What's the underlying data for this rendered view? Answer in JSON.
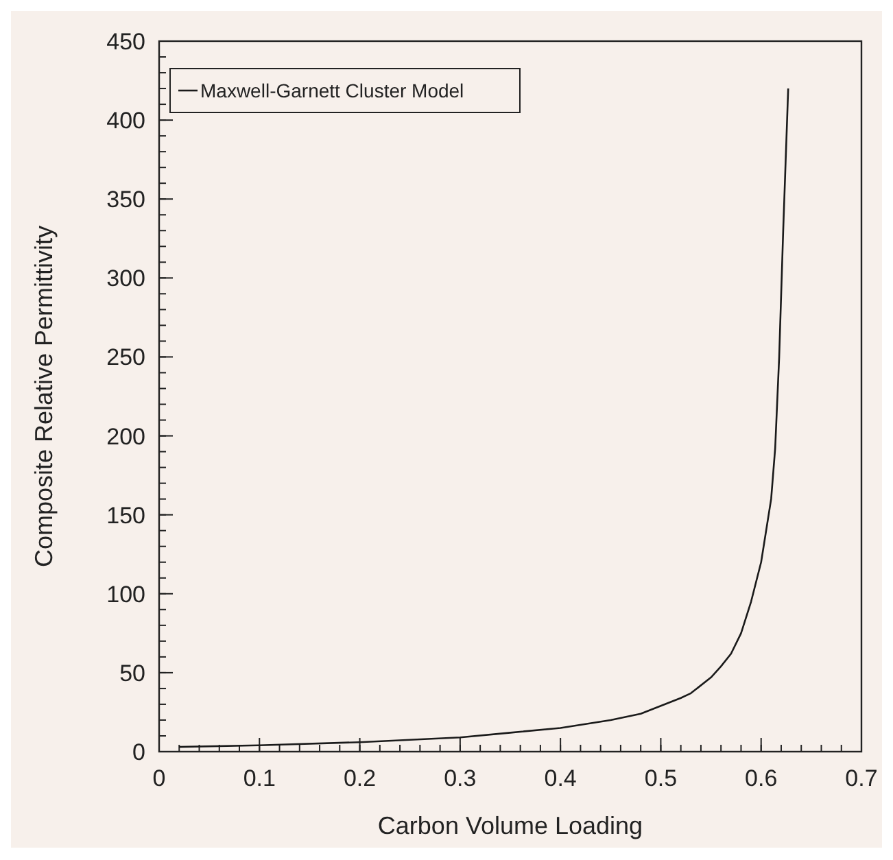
{
  "chart_data": {
    "type": "line",
    "xlabel": "Carbon Volume Loading",
    "ylabel": "Composite Relative Permittivity",
    "xlim": [
      0,
      0.7
    ],
    "xticks": [
      0,
      0.1,
      0.2,
      0.3,
      0.4,
      0.5,
      0.6,
      0.7
    ],
    "ylim": [
      0,
      450
    ],
    "yticks": [
      0,
      50,
      100,
      150,
      200,
      250,
      300,
      350,
      400,
      450
    ],
    "grid": false,
    "legend": "top left",
    "marker": "none",
    "line_style": "solid",
    "series": [
      {
        "name": "Maxwell-Garnett Cluster Model",
        "color": "#1a1a1a",
        "x": [
          0.02,
          0.1,
          0.2,
          0.3,
          0.35,
          0.4,
          0.45,
          0.48,
          0.5,
          0.52,
          0.53,
          0.55,
          0.56,
          0.57,
          0.58,
          0.59,
          0.6,
          0.605,
          0.61,
          0.614,
          0.618,
          0.622,
          0.627
        ],
        "values": [
          3,
          4,
          6,
          9,
          12,
          15,
          20,
          24,
          29,
          34,
          37,
          47,
          54,
          62,
          75,
          95,
          120,
          140,
          160,
          192,
          250,
          330,
          420
        ]
      }
    ]
  }
}
